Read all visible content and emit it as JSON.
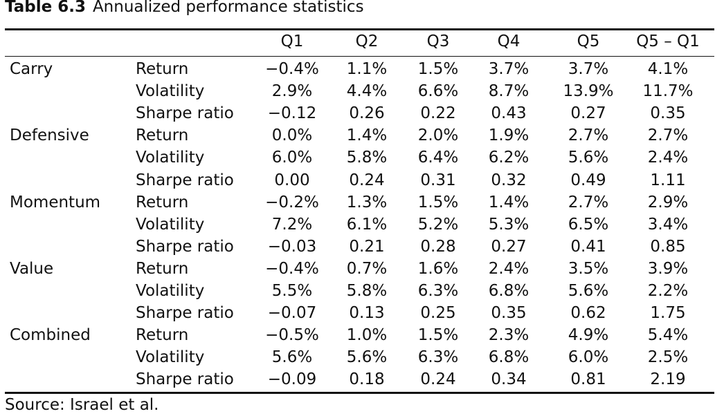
{
  "title": {
    "label": "Table 6.3",
    "text": "Annualized performance statistics"
  },
  "columns": [
    "Q1",
    "Q2",
    "Q3",
    "Q4",
    "Q5",
    "Q5 – Q1"
  ],
  "groups": [
    {
      "name": "Carry",
      "rows": [
        {
          "metric": "Return",
          "values": [
            "−0.4%",
            "1.1%",
            "1.5%",
            "3.7%",
            "3.7%",
            "4.1%"
          ]
        },
        {
          "metric": "Volatility",
          "values": [
            "2.9%",
            "4.4%",
            "6.6%",
            "8.7%",
            "13.9%",
            "11.7%"
          ]
        },
        {
          "metric": "Sharpe ratio",
          "values": [
            "−0.12",
            "0.26",
            "0.22",
            "0.43",
            "0.27",
            "0.35"
          ]
        }
      ]
    },
    {
      "name": "Defensive",
      "rows": [
        {
          "metric": "Return",
          "values": [
            "0.0%",
            "1.4%",
            "2.0%",
            "1.9%",
            "2.7%",
            "2.7%"
          ]
        },
        {
          "metric": "Volatility",
          "values": [
            "6.0%",
            "5.8%",
            "6.4%",
            "6.2%",
            "5.6%",
            "2.4%"
          ]
        },
        {
          "metric": "Sharpe ratio",
          "values": [
            "0.00",
            "0.24",
            "0.31",
            "0.32",
            "0.49",
            "1.11"
          ]
        }
      ]
    },
    {
      "name": "Momentum",
      "rows": [
        {
          "metric": "Return",
          "values": [
            "−0.2%",
            "1.3%",
            "1.5%",
            "1.4%",
            "2.7%",
            "2.9%"
          ]
        },
        {
          "metric": "Volatility",
          "values": [
            "7.2%",
            "6.1%",
            "5.2%",
            "5.3%",
            "6.5%",
            "3.4%"
          ]
        },
        {
          "metric": "Sharpe ratio",
          "values": [
            "−0.03",
            "0.21",
            "0.28",
            "0.27",
            "0.41",
            "0.85"
          ]
        }
      ]
    },
    {
      "name": "Value",
      "rows": [
        {
          "metric": "Return",
          "values": [
            "−0.4%",
            "0.7%",
            "1.6%",
            "2.4%",
            "3.5%",
            "3.9%"
          ]
        },
        {
          "metric": "Volatility",
          "values": [
            "5.5%",
            "5.8%",
            "6.3%",
            "6.8%",
            "5.6%",
            "2.2%"
          ]
        },
        {
          "metric": "Sharpe ratio",
          "values": [
            "−0.07",
            "0.13",
            "0.25",
            "0.35",
            "0.62",
            "1.75"
          ]
        }
      ]
    },
    {
      "name": "Combined",
      "rows": [
        {
          "metric": "Return",
          "values": [
            "−0.5%",
            "1.0%",
            "1.5%",
            "2.3%",
            "4.9%",
            "5.4%"
          ]
        },
        {
          "metric": "Volatility",
          "values": [
            "5.6%",
            "5.6%",
            "6.3%",
            "6.8%",
            "6.0%",
            "2.5%"
          ]
        },
        {
          "metric": "Sharpe ratio",
          "values": [
            "−0.09",
            "0.18",
            "0.24",
            "0.34",
            "0.81",
            "2.19"
          ]
        }
      ]
    }
  ],
  "source": "Source: Israel et al."
}
